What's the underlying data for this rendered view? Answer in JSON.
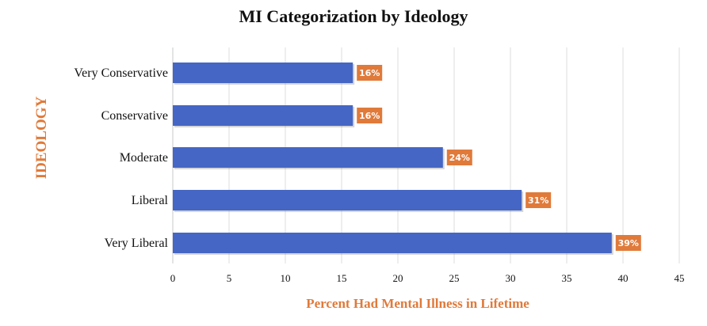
{
  "chart_data": {
    "type": "bar",
    "orientation": "horizontal",
    "title": "MI Categorization by Ideology",
    "xlabel": "Percent Had Mental Illness in Lifetime",
    "ylabel": "IDEOLOGY",
    "categories": [
      "Very Conservative",
      "Conservative",
      "Moderate",
      "Liberal",
      "Very Liberal"
    ],
    "values": [
      16,
      16,
      24,
      31,
      39
    ],
    "data_labels": [
      "16%",
      "16%",
      "24%",
      "31%",
      "39%"
    ],
    "xlim": [
      0,
      45
    ],
    "xticks": [
      "0",
      "5",
      "10",
      "15",
      "20",
      "25",
      "30",
      "35",
      "40",
      "45"
    ],
    "grid": "vertical",
    "colors": {
      "bar": "#4566c4",
      "label_bg": "#e07a3a",
      "accent": "#e07a3a"
    }
  }
}
